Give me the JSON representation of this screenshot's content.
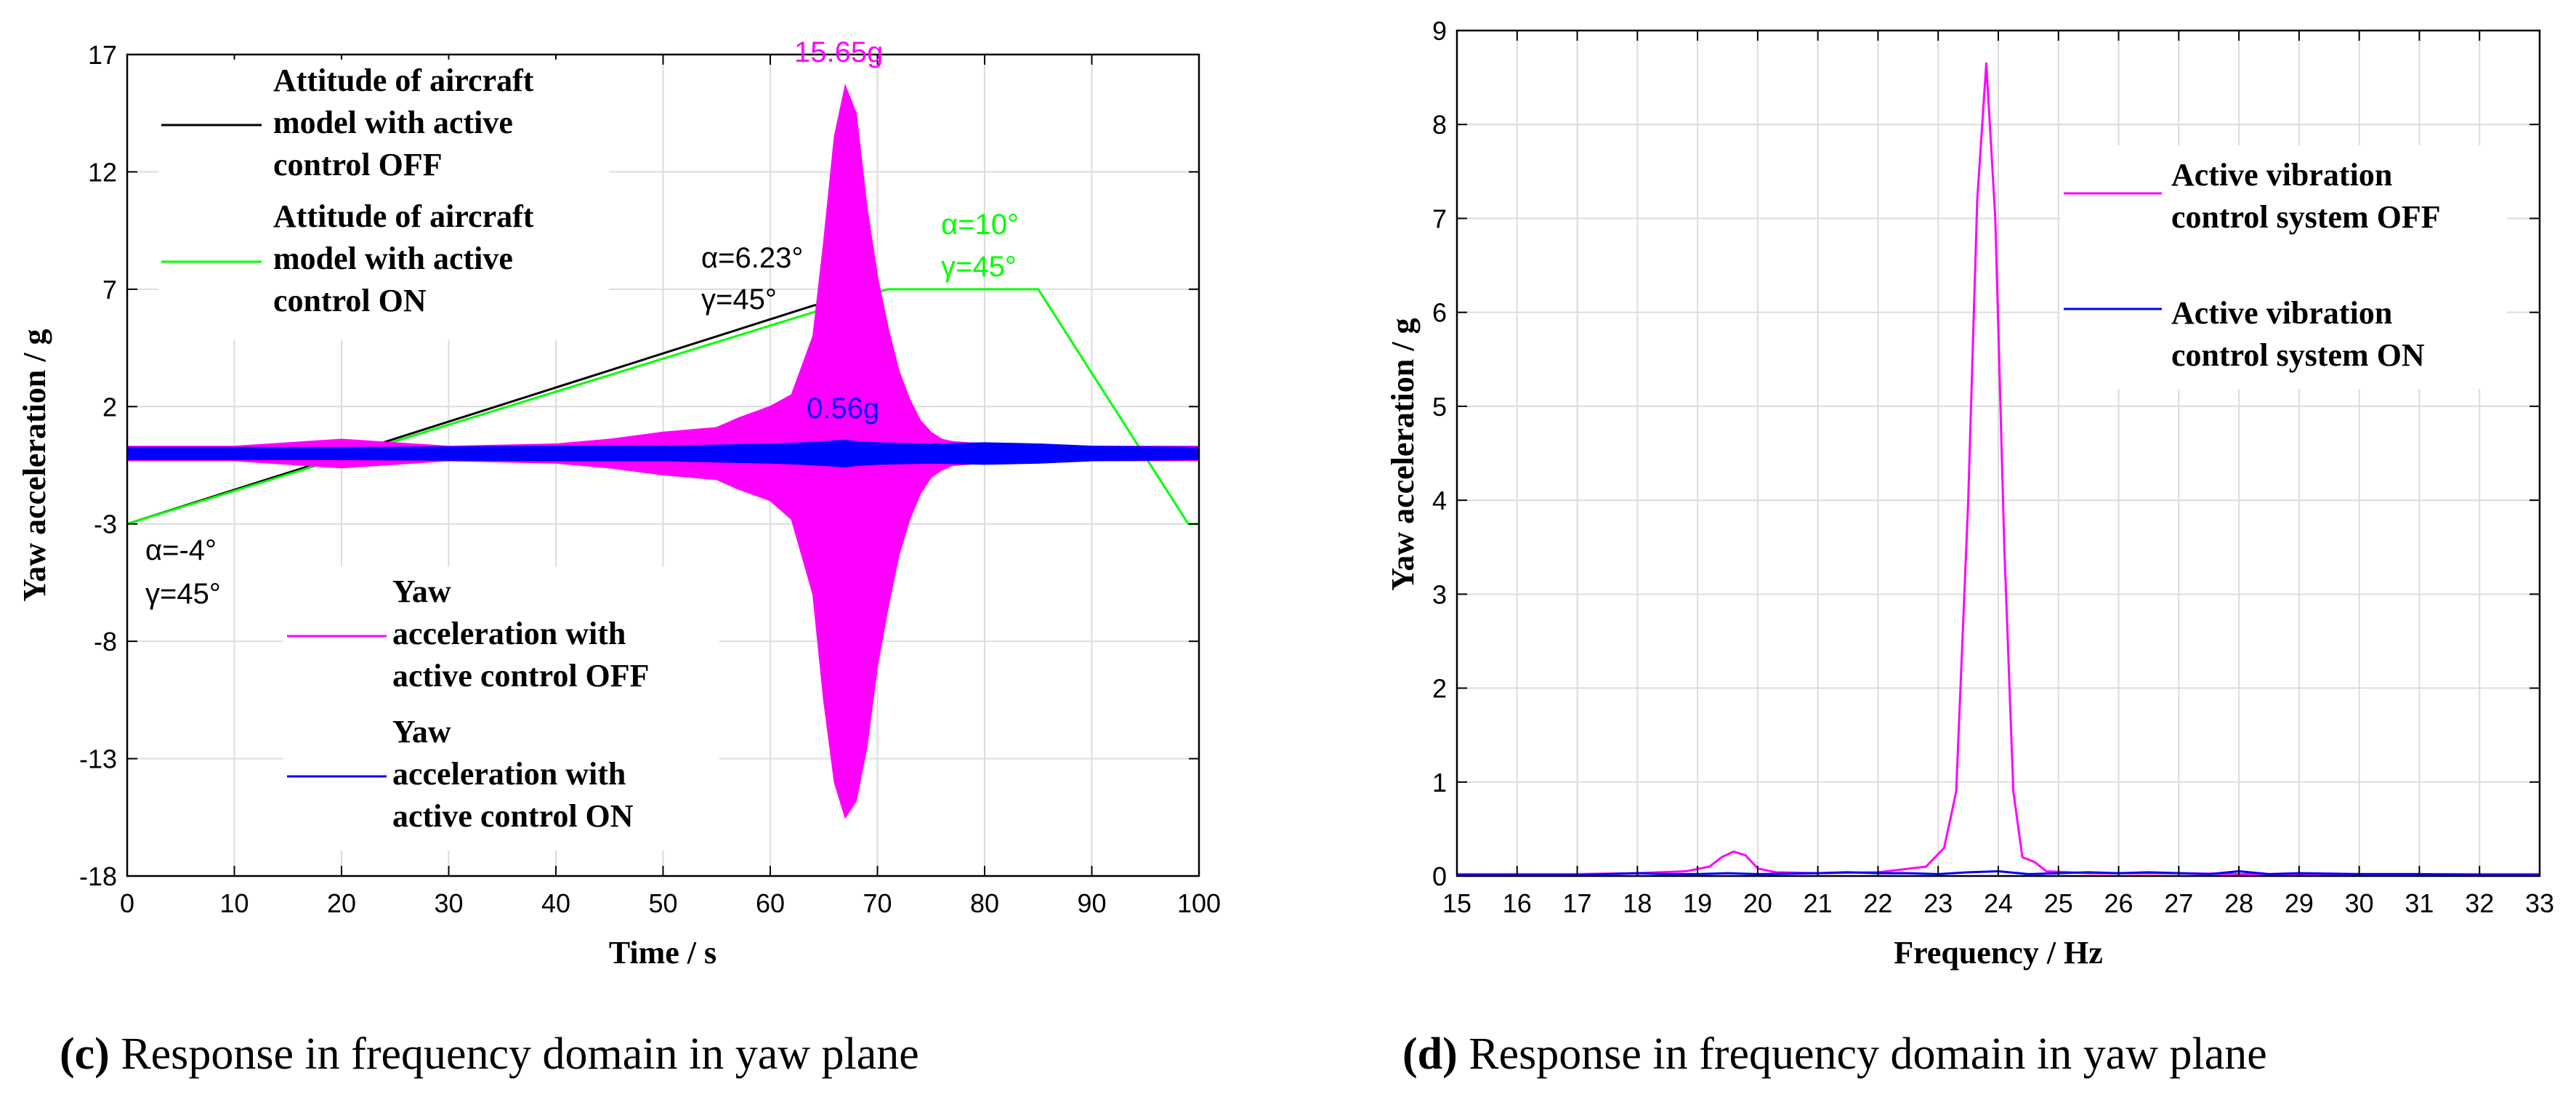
{
  "colors": {
    "off": "#ff00ff",
    "on": "#0000ff",
    "attitude_off": "#000000",
    "attitude_on": "#00ff00"
  },
  "chart_data": [
    {
      "type": "line",
      "panel": "c",
      "caption_letter": "(c)",
      "caption_text": " Response in frequency domain in yaw plane",
      "xlabel": "Time / s",
      "ylabel": "Yaw acceleration / g",
      "xlim": [
        0,
        100
      ],
      "ylim": [
        -18,
        17
      ],
      "xticks": [
        0,
        10,
        20,
        30,
        40,
        50,
        60,
        70,
        80,
        90,
        100
      ],
      "yticks": [
        -18,
        -13,
        -8,
        -3,
        2,
        7,
        12,
        17
      ],
      "grid": true,
      "series": [
        {
          "name": "Attitude of aircraft model with active control OFF",
          "legend_lines": [
            "Attitude of aircraft",
            "model with active",
            "control OFF"
          ],
          "color": "#000000",
          "kind": "line",
          "x": [
            0,
            64,
            67,
            70,
            73,
            75.5
          ],
          "values": [
            -3,
            6.3,
            6.6,
            4.2,
            1.4,
            0.1
          ]
        },
        {
          "name": "Attitude of aircraft model with active control ON",
          "legend_lines": [
            "Attitude of aircraft",
            "model with active",
            "control ON"
          ],
          "color": "#00ff00",
          "kind": "line",
          "x": [
            0,
            71,
            85,
            99,
            100
          ],
          "values": [
            -3,
            7,
            7,
            -3,
            -3
          ]
        },
        {
          "name": "Yaw acceleration with active control OFF",
          "legend_lines": [
            "Yaw",
            "acceleration with",
            "active control OFF"
          ],
          "color": "#ff00ff",
          "kind": "envelope",
          "x": [
            0,
            10,
            20,
            30,
            40,
            45,
            50,
            55,
            57,
            60,
            62,
            64,
            65,
            66,
            67,
            68,
            69,
            70,
            71,
            72,
            73,
            74,
            75,
            76,
            77,
            80,
            85,
            90,
            100
          ],
          "upper": [
            0.3,
            0.3,
            0.6,
            0.3,
            0.4,
            0.6,
            0.9,
            1.1,
            1.5,
            2.0,
            2.5,
            5.0,
            9.0,
            13.5,
            15.65,
            14.5,
            10.5,
            7.5,
            5.3,
            3.5,
            2.3,
            1.4,
            0.9,
            0.6,
            0.5,
            0.4,
            0.4,
            0.3,
            0.3
          ],
          "lower": [
            -0.3,
            -0.3,
            -0.6,
            -0.3,
            -0.4,
            -0.6,
            -0.9,
            -1.1,
            -1.5,
            -2.0,
            -2.8,
            -6.0,
            -10.5,
            -14.0,
            -15.5,
            -14.8,
            -12.5,
            -9.0,
            -6.5,
            -4.3,
            -2.8,
            -1.7,
            -1.0,
            -0.7,
            -0.5,
            -0.4,
            -0.4,
            -0.3,
            -0.3
          ]
        },
        {
          "name": "Yaw acceleration with active control ON",
          "legend_lines": [
            "Yaw",
            "acceleration with",
            "active control ON"
          ],
          "color": "#0000ff",
          "kind": "envelope",
          "x": [
            0,
            20,
            40,
            50,
            55,
            60,
            63,
            65,
            67,
            68,
            70,
            75,
            80,
            85,
            90,
            100
          ],
          "upper": [
            0.25,
            0.25,
            0.3,
            0.3,
            0.35,
            0.4,
            0.45,
            0.5,
            0.56,
            0.5,
            0.45,
            0.4,
            0.45,
            0.4,
            0.3,
            0.25
          ],
          "lower": [
            -0.25,
            -0.25,
            -0.3,
            -0.3,
            -0.35,
            -0.4,
            -0.45,
            -0.5,
            -0.56,
            -0.5,
            -0.45,
            -0.4,
            -0.45,
            -0.4,
            -0.3,
            -0.25
          ]
        }
      ],
      "annotations": [
        {
          "text": "15.65g",
          "color": "#ff00ff"
        },
        {
          "text": "0.56g",
          "color": "#0000ff"
        },
        {
          "text": "α=6.23°",
          "color": "#000000"
        },
        {
          "text": "γ=45°",
          "color": "#000000"
        },
        {
          "text": "α=10°",
          "color": "#00ff00"
        },
        {
          "text": "γ=45°",
          "color": "#00ff00"
        },
        {
          "text": "α=-4°",
          "color": "#000000"
        },
        {
          "text": "γ=45°",
          "color": "#000000"
        }
      ]
    },
    {
      "type": "line",
      "panel": "d",
      "caption_letter": "(d)",
      "caption_text": " Response in frequency domain in yaw plane",
      "xlabel": "Frequency / Hz",
      "ylabel": "Yaw acceleration / g",
      "xlim": [
        15,
        33
      ],
      "ylim": [
        0,
        9
      ],
      "xticks": [
        15,
        16,
        17,
        18,
        19,
        20,
        21,
        22,
        23,
        24,
        25,
        26,
        27,
        28,
        29,
        30,
        31,
        32,
        33
      ],
      "yticks": [
        0,
        1,
        2,
        3,
        4,
        5,
        6,
        7,
        8,
        9
      ],
      "grid": true,
      "series": [
        {
          "name": "Active vibration control system OFF",
          "legend_lines": [
            "Active vibration",
            "control system OFF"
          ],
          "color": "#ff00ff",
          "kind": "line",
          "x": [
            15,
            17,
            18,
            18.8,
            19.2,
            19.4,
            19.6,
            19.8,
            20.0,
            20.3,
            21,
            22,
            22.8,
            23.1,
            23.3,
            23.5,
            23.65,
            23.8,
            23.95,
            24.1,
            24.25,
            24.4,
            24.6,
            24.8,
            25.5,
            27,
            28,
            30,
            33
          ],
          "values": [
            0.02,
            0.02,
            0.03,
            0.05,
            0.1,
            0.2,
            0.26,
            0.22,
            0.08,
            0.04,
            0.03,
            0.04,
            0.1,
            0.3,
            0.9,
            4.0,
            7.2,
            8.65,
            7.0,
            3.5,
            0.9,
            0.2,
            0.15,
            0.05,
            0.03,
            0.03,
            0.02,
            0.02,
            0.02
          ]
        },
        {
          "name": "Active vibration control system ON",
          "legend_lines": [
            "Active vibration",
            "control system ON"
          ],
          "color": "#0000ff",
          "kind": "line",
          "x": [
            15,
            16,
            17,
            17.5,
            18,
            18.5,
            19,
            19.5,
            20,
            21,
            21.5,
            22,
            22.5,
            23,
            23.5,
            24,
            24.5,
            25,
            25.5,
            26,
            26.5,
            27,
            27.5,
            28,
            28.5,
            29,
            30,
            31,
            32,
            33
          ],
          "values": [
            0.01,
            0.01,
            0.01,
            0.02,
            0.03,
            0.02,
            0.02,
            0.03,
            0.02,
            0.03,
            0.04,
            0.03,
            0.03,
            0.02,
            0.04,
            0.05,
            0.02,
            0.03,
            0.04,
            0.03,
            0.04,
            0.03,
            0.02,
            0.05,
            0.02,
            0.03,
            0.02,
            0.02,
            0.01,
            0.01
          ]
        }
      ]
    }
  ]
}
